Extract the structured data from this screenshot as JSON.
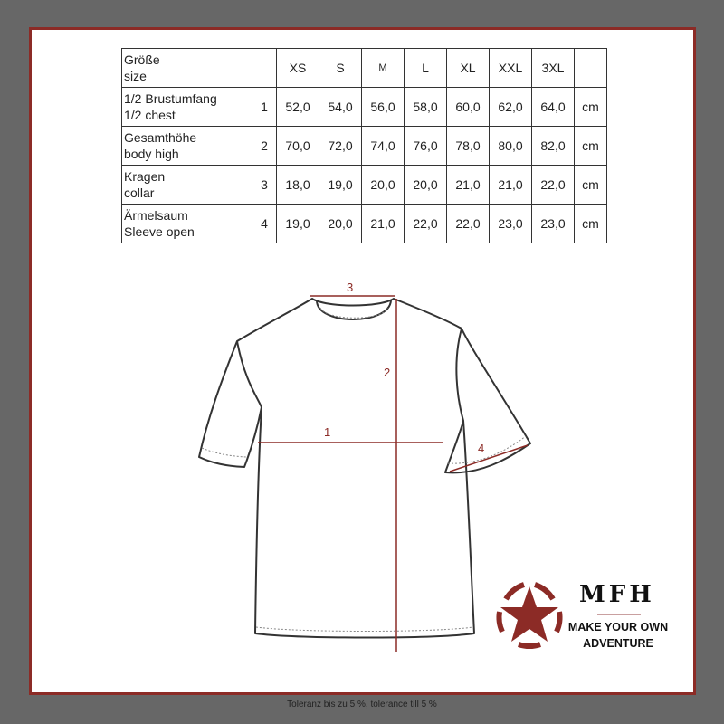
{
  "table": {
    "header": {
      "label_line1": "Größe",
      "label_line2": "size",
      "sizes": [
        "XS",
        "S",
        "M",
        "L",
        "XL",
        "XXL",
        "3XL"
      ]
    },
    "rows": [
      {
        "label_line1": "1/2 Brustumfang",
        "label_line2": "1/2 chest",
        "num": "1",
        "values": [
          "52,0",
          "54,0",
          "56,0",
          "58,0",
          "60,0",
          "62,0",
          "64,0"
        ],
        "unit": "cm"
      },
      {
        "label_line1": "Gesamthöhe",
        "label_line2": "body high",
        "num": "2",
        "values": [
          "70,0",
          "72,0",
          "74,0",
          "76,0",
          "78,0",
          "80,0",
          "82,0"
        ],
        "unit": "cm"
      },
      {
        "label_line1": "Kragen",
        "label_line2": "collar",
        "num": "3",
        "values": [
          "18,0",
          "19,0",
          "20,0",
          "20,0",
          "21,0",
          "21,0",
          "22,0"
        ],
        "unit": "cm"
      },
      {
        "label_line1": "Ärmelsaum",
        "label_line2": "Sleeve open",
        "num": "4",
        "values": [
          "19,0",
          "20,0",
          "21,0",
          "22,0",
          "22,0",
          "23,0",
          "23,0"
        ],
        "unit": "cm"
      }
    ]
  },
  "diagram": {
    "labels": [
      "1",
      "2",
      "3",
      "4"
    ],
    "line_color": "#8c2b26"
  },
  "logo": {
    "brand": "MFH",
    "tagline_line1": "MAKE YOUR OWN",
    "tagline_line2": "ADVENTURE",
    "color": "#8c2b26"
  },
  "footer": "Toleranz bis zu 5 %, tolerance till 5 %"
}
